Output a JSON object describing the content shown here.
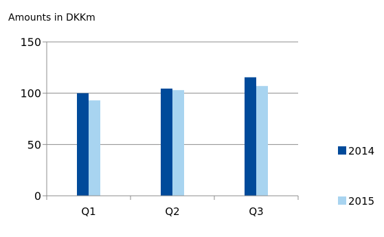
{
  "chart_data": {
    "type": "bar",
    "title": "Amounts in DKKm",
    "xlabel": "",
    "ylabel": "",
    "categories": [
      "Q1",
      "Q2",
      "Q3"
    ],
    "series": [
      {
        "name": "2014",
        "values": [
          100,
          104.5,
          115.5
        ],
        "color": "#004a9a"
      },
      {
        "name": "2015",
        "values": [
          93,
          103,
          107
        ],
        "color": "#a8d4f0"
      }
    ],
    "ylim": [
      0,
      150
    ],
    "yticks": [
      "0",
      "50",
      "100",
      "150"
    ],
    "grid": true,
    "legend_position": "right"
  }
}
